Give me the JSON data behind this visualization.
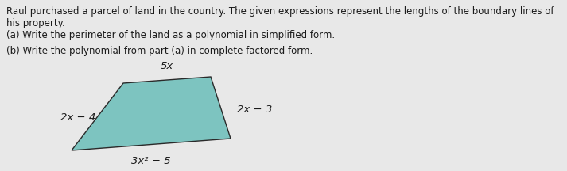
{
  "background_color": "#e8e8e8",
  "text_color": "#1a1a1a",
  "title_line1": "Raul purchased a parcel of land in the country. The given expressions represent the lengths of the boundary lines of his property.",
  "line_a": "(a) Write the perimeter of the land as a polynomial in simplified form.",
  "line_b": "(b) Write the polynomial from part (a) in complete factored form.",
  "shape_color": "#7dc4c0",
  "label_top": "5x",
  "label_right": "2x − 3",
  "label_left": "2x − 4",
  "label_bottom": "3x² − 5",
  "font_size_text": 8.5,
  "font_size_label": 9.5
}
